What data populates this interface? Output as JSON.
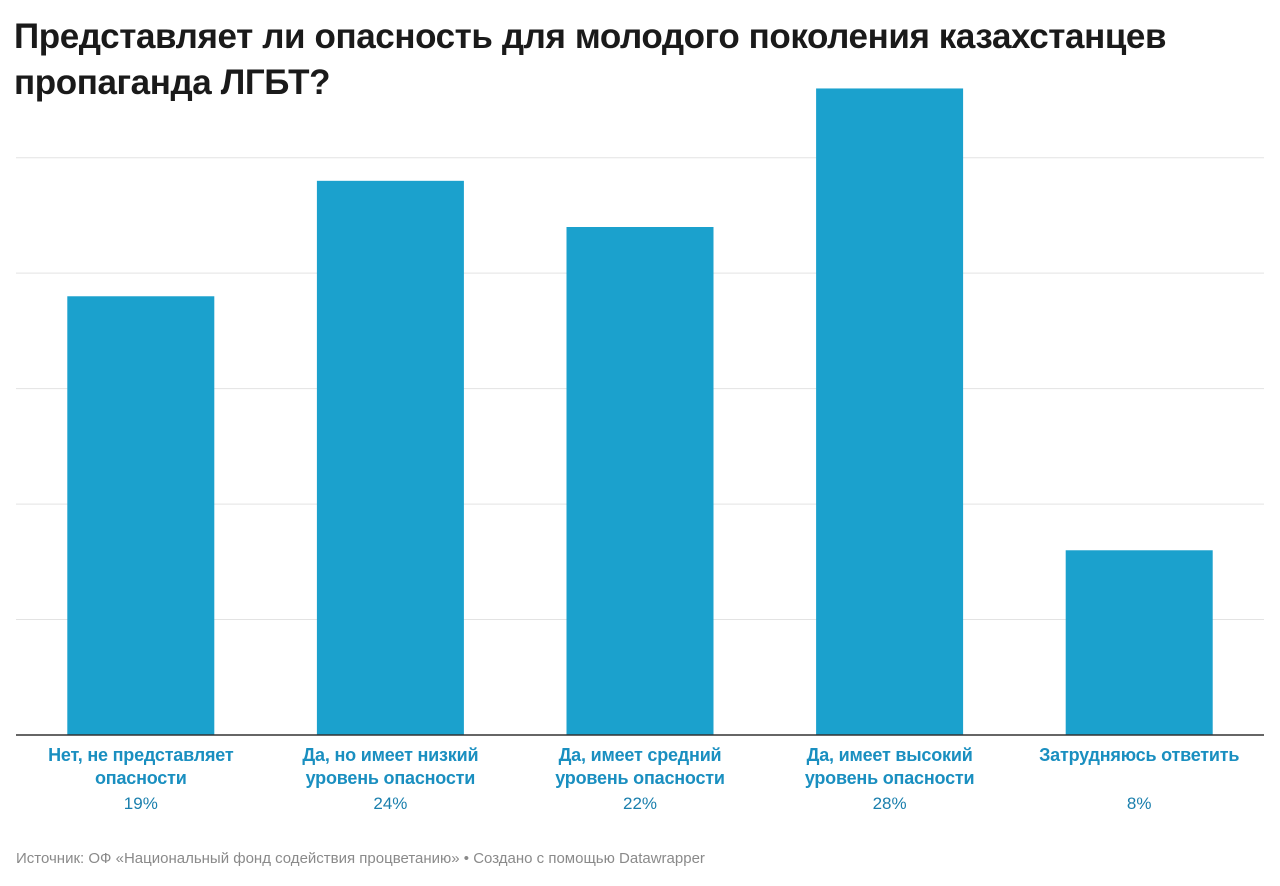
{
  "title": "Представляет ли опасность для молодого поколения казахстанцев пропаганда ЛГБТ?",
  "footer": {
    "source_text": "Источник: ОФ «Национальный фонд содействия процветанию» • Создано с помощью Datawrapper"
  },
  "colors": {
    "bar": "#1ba1cd",
    "category_label": "#1a8fc0",
    "value_label": "#1a7fad",
    "gridline": "#e3e3e3"
  },
  "chart_data": {
    "type": "bar",
    "categories": [
      "Нет, не представляет опасности",
      "Да, но имеет низкий уровень опасности",
      "Да, имеет средний уровень опасности",
      "Да, имеет высокий уровень опасности",
      "Затрудняюсь ответить"
    ],
    "values": [
      19,
      24,
      22,
      28,
      8
    ],
    "value_labels": [
      "19%",
      "24%",
      "22%",
      "28%",
      "8%"
    ],
    "ylim": [
      0,
      27.5
    ],
    "gridlines": [
      5,
      10,
      15,
      20,
      25
    ],
    "grid": true,
    "legend": "none"
  }
}
